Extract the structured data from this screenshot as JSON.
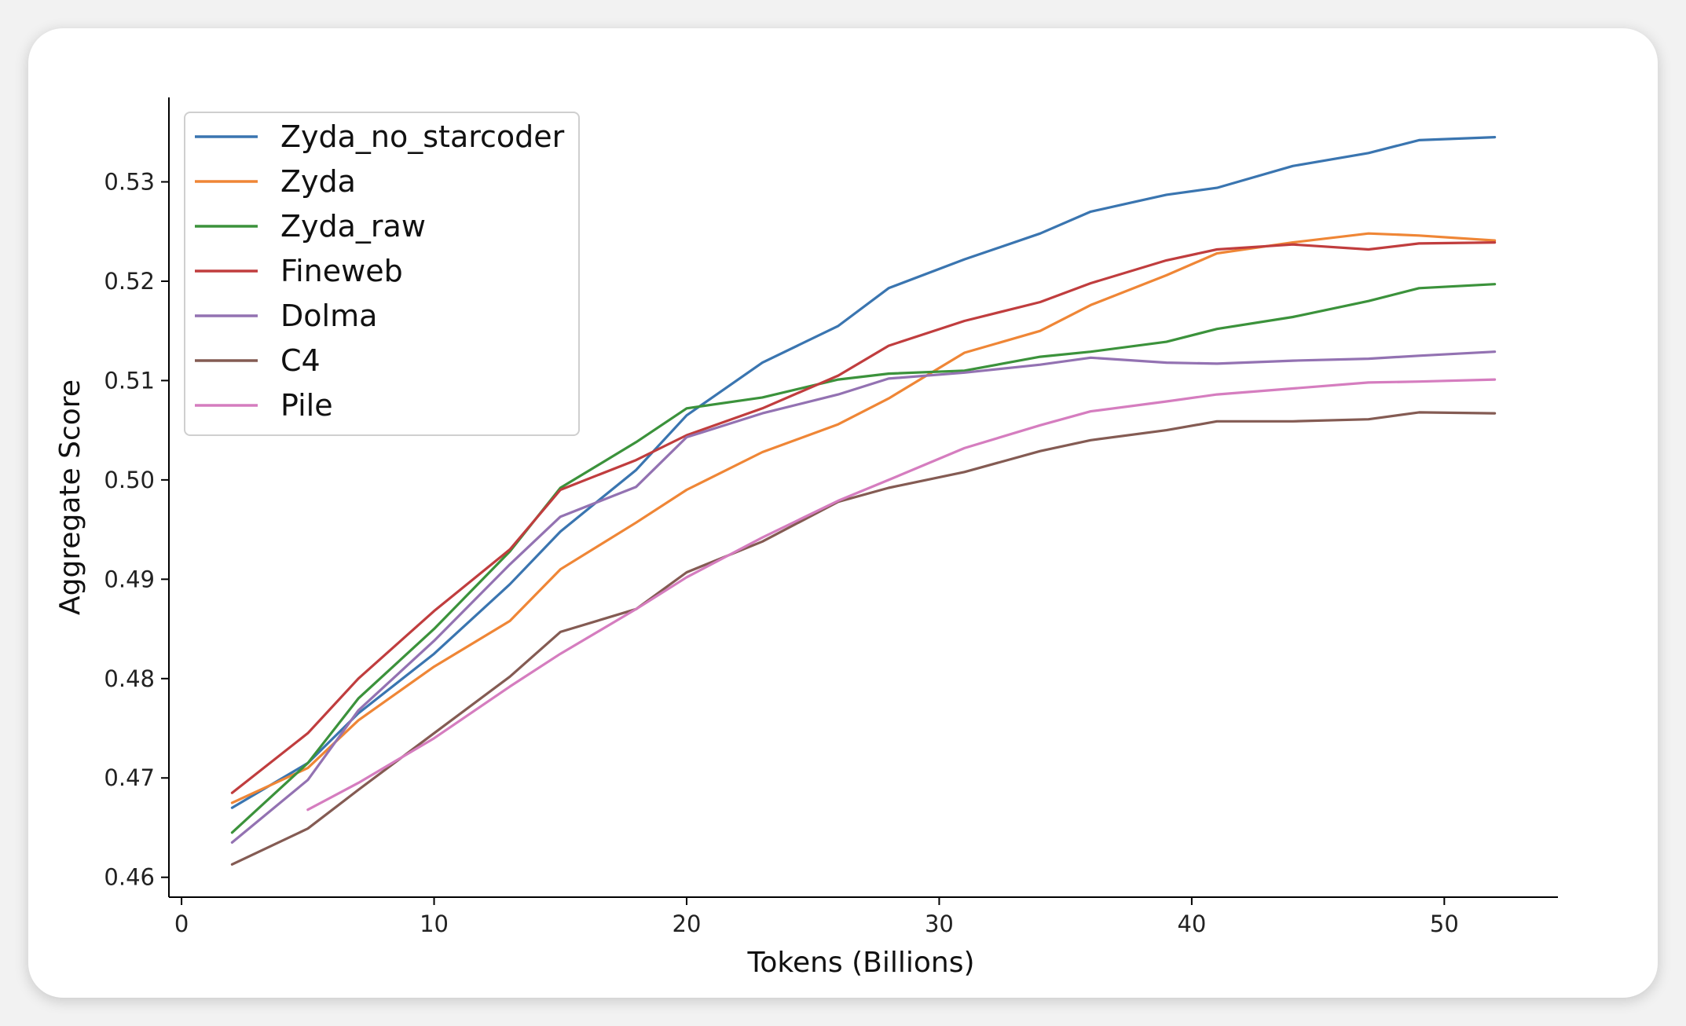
{
  "chart_data": {
    "type": "line",
    "title": "",
    "xlabel": "Tokens (Billions)",
    "ylabel": "Aggregate Score",
    "xlim": [
      -0.5,
      54.5
    ],
    "ylim": [
      0.458,
      0.5385
    ],
    "xticks": [
      0,
      10,
      20,
      30,
      40,
      50
    ],
    "yticks": [
      0.46,
      0.47,
      0.48,
      0.49,
      0.5,
      0.51,
      0.52,
      0.53
    ],
    "ytick_labels": [
      "0.46",
      "0.47",
      "0.48",
      "0.49",
      "0.50",
      "0.51",
      "0.52",
      "0.53"
    ],
    "legend_position": "top-left",
    "grid": false,
    "series": [
      {
        "name": "Zyda_no_starcoder",
        "color": "#3a75b0",
        "x": [
          2,
          5,
          7,
          10,
          13,
          15,
          18,
          20,
          23,
          26,
          28,
          31,
          34,
          36,
          39,
          41,
          44,
          47,
          49,
          52
        ],
        "y": [
          0.467,
          0.4715,
          0.4765,
          0.4825,
          0.4895,
          0.4948,
          0.501,
          0.5065,
          0.5118,
          0.5155,
          0.5193,
          0.5222,
          0.5248,
          0.527,
          0.5287,
          0.5294,
          0.5316,
          0.5329,
          0.5342,
          0.5345
        ]
      },
      {
        "name": "Zyda",
        "color": "#ef8636",
        "x": [
          2,
          5,
          7,
          10,
          13,
          15,
          18,
          20,
          23,
          26,
          28,
          31,
          34,
          36,
          39,
          41,
          44,
          47,
          49,
          52
        ],
        "y": [
          0.4675,
          0.471,
          0.4758,
          0.4812,
          0.4858,
          0.491,
          0.4957,
          0.499,
          0.5028,
          0.5056,
          0.5082,
          0.5128,
          0.515,
          0.5176,
          0.5206,
          0.5228,
          0.5239,
          0.5248,
          0.5246,
          0.5241
        ]
      },
      {
        "name": "Zyda_raw",
        "color": "#3b923b",
        "x": [
          2,
          5,
          7,
          10,
          13,
          15,
          18,
          20,
          23,
          26,
          28,
          31,
          34,
          36,
          39,
          41,
          44,
          47,
          49,
          52
        ],
        "y": [
          0.4645,
          0.4715,
          0.478,
          0.485,
          0.4928,
          0.4992,
          0.5038,
          0.5072,
          0.5083,
          0.5101,
          0.5107,
          0.511,
          0.5124,
          0.5129,
          0.5139,
          0.5152,
          0.5164,
          0.518,
          0.5193,
          0.5197
        ]
      },
      {
        "name": "Fineweb",
        "color": "#c03d3e",
        "x": [
          2,
          5,
          7,
          10,
          13,
          15,
          18,
          20,
          23,
          26,
          28,
          31,
          34,
          36,
          39,
          41,
          44,
          47,
          49,
          52
        ],
        "y": [
          0.4685,
          0.4745,
          0.48,
          0.4868,
          0.493,
          0.499,
          0.502,
          0.5045,
          0.5072,
          0.5105,
          0.5135,
          0.516,
          0.5179,
          0.5198,
          0.5221,
          0.5232,
          0.5237,
          0.5232,
          0.5238,
          0.5239
        ]
      },
      {
        "name": "Dolma",
        "color": "#9372b2",
        "x": [
          2,
          5,
          7,
          10,
          13,
          15,
          18,
          20,
          23,
          26,
          28,
          31,
          34,
          36,
          39,
          41,
          44,
          47,
          49,
          52
        ],
        "y": [
          0.4635,
          0.4698,
          0.4768,
          0.4838,
          0.4915,
          0.4963,
          0.4993,
          0.5043,
          0.5067,
          0.5086,
          0.5102,
          0.5108,
          0.5116,
          0.5123,
          0.5118,
          0.5117,
          0.512,
          0.5122,
          0.5125,
          0.5129
        ]
      },
      {
        "name": "C4",
        "color": "#845b53",
        "x": [
          2,
          5,
          7,
          10,
          13,
          15,
          18,
          20,
          23,
          26,
          28,
          31,
          34,
          36,
          39,
          41,
          44,
          47,
          49,
          52
        ],
        "y": [
          0.4613,
          0.4649,
          0.4688,
          0.4745,
          0.4802,
          0.4847,
          0.487,
          0.4907,
          0.4938,
          0.4978,
          0.4992,
          0.5008,
          0.5029,
          0.504,
          0.505,
          0.5059,
          0.5059,
          0.5061,
          0.5068,
          0.5067
        ]
      },
      {
        "name": "Pile",
        "color": "#d57dbf",
        "x": [
          5,
          7,
          10,
          13,
          15,
          18,
          20,
          23,
          26,
          28,
          31,
          34,
          36,
          39,
          41,
          44,
          47,
          49,
          52
        ],
        "y": [
          0.4668,
          0.4695,
          0.474,
          0.4792,
          0.4825,
          0.487,
          0.4902,
          0.4942,
          0.4979,
          0.5,
          0.5032,
          0.5055,
          0.5069,
          0.5079,
          0.5086,
          0.5092,
          0.5098,
          0.5099,
          0.5101
        ]
      }
    ]
  }
}
